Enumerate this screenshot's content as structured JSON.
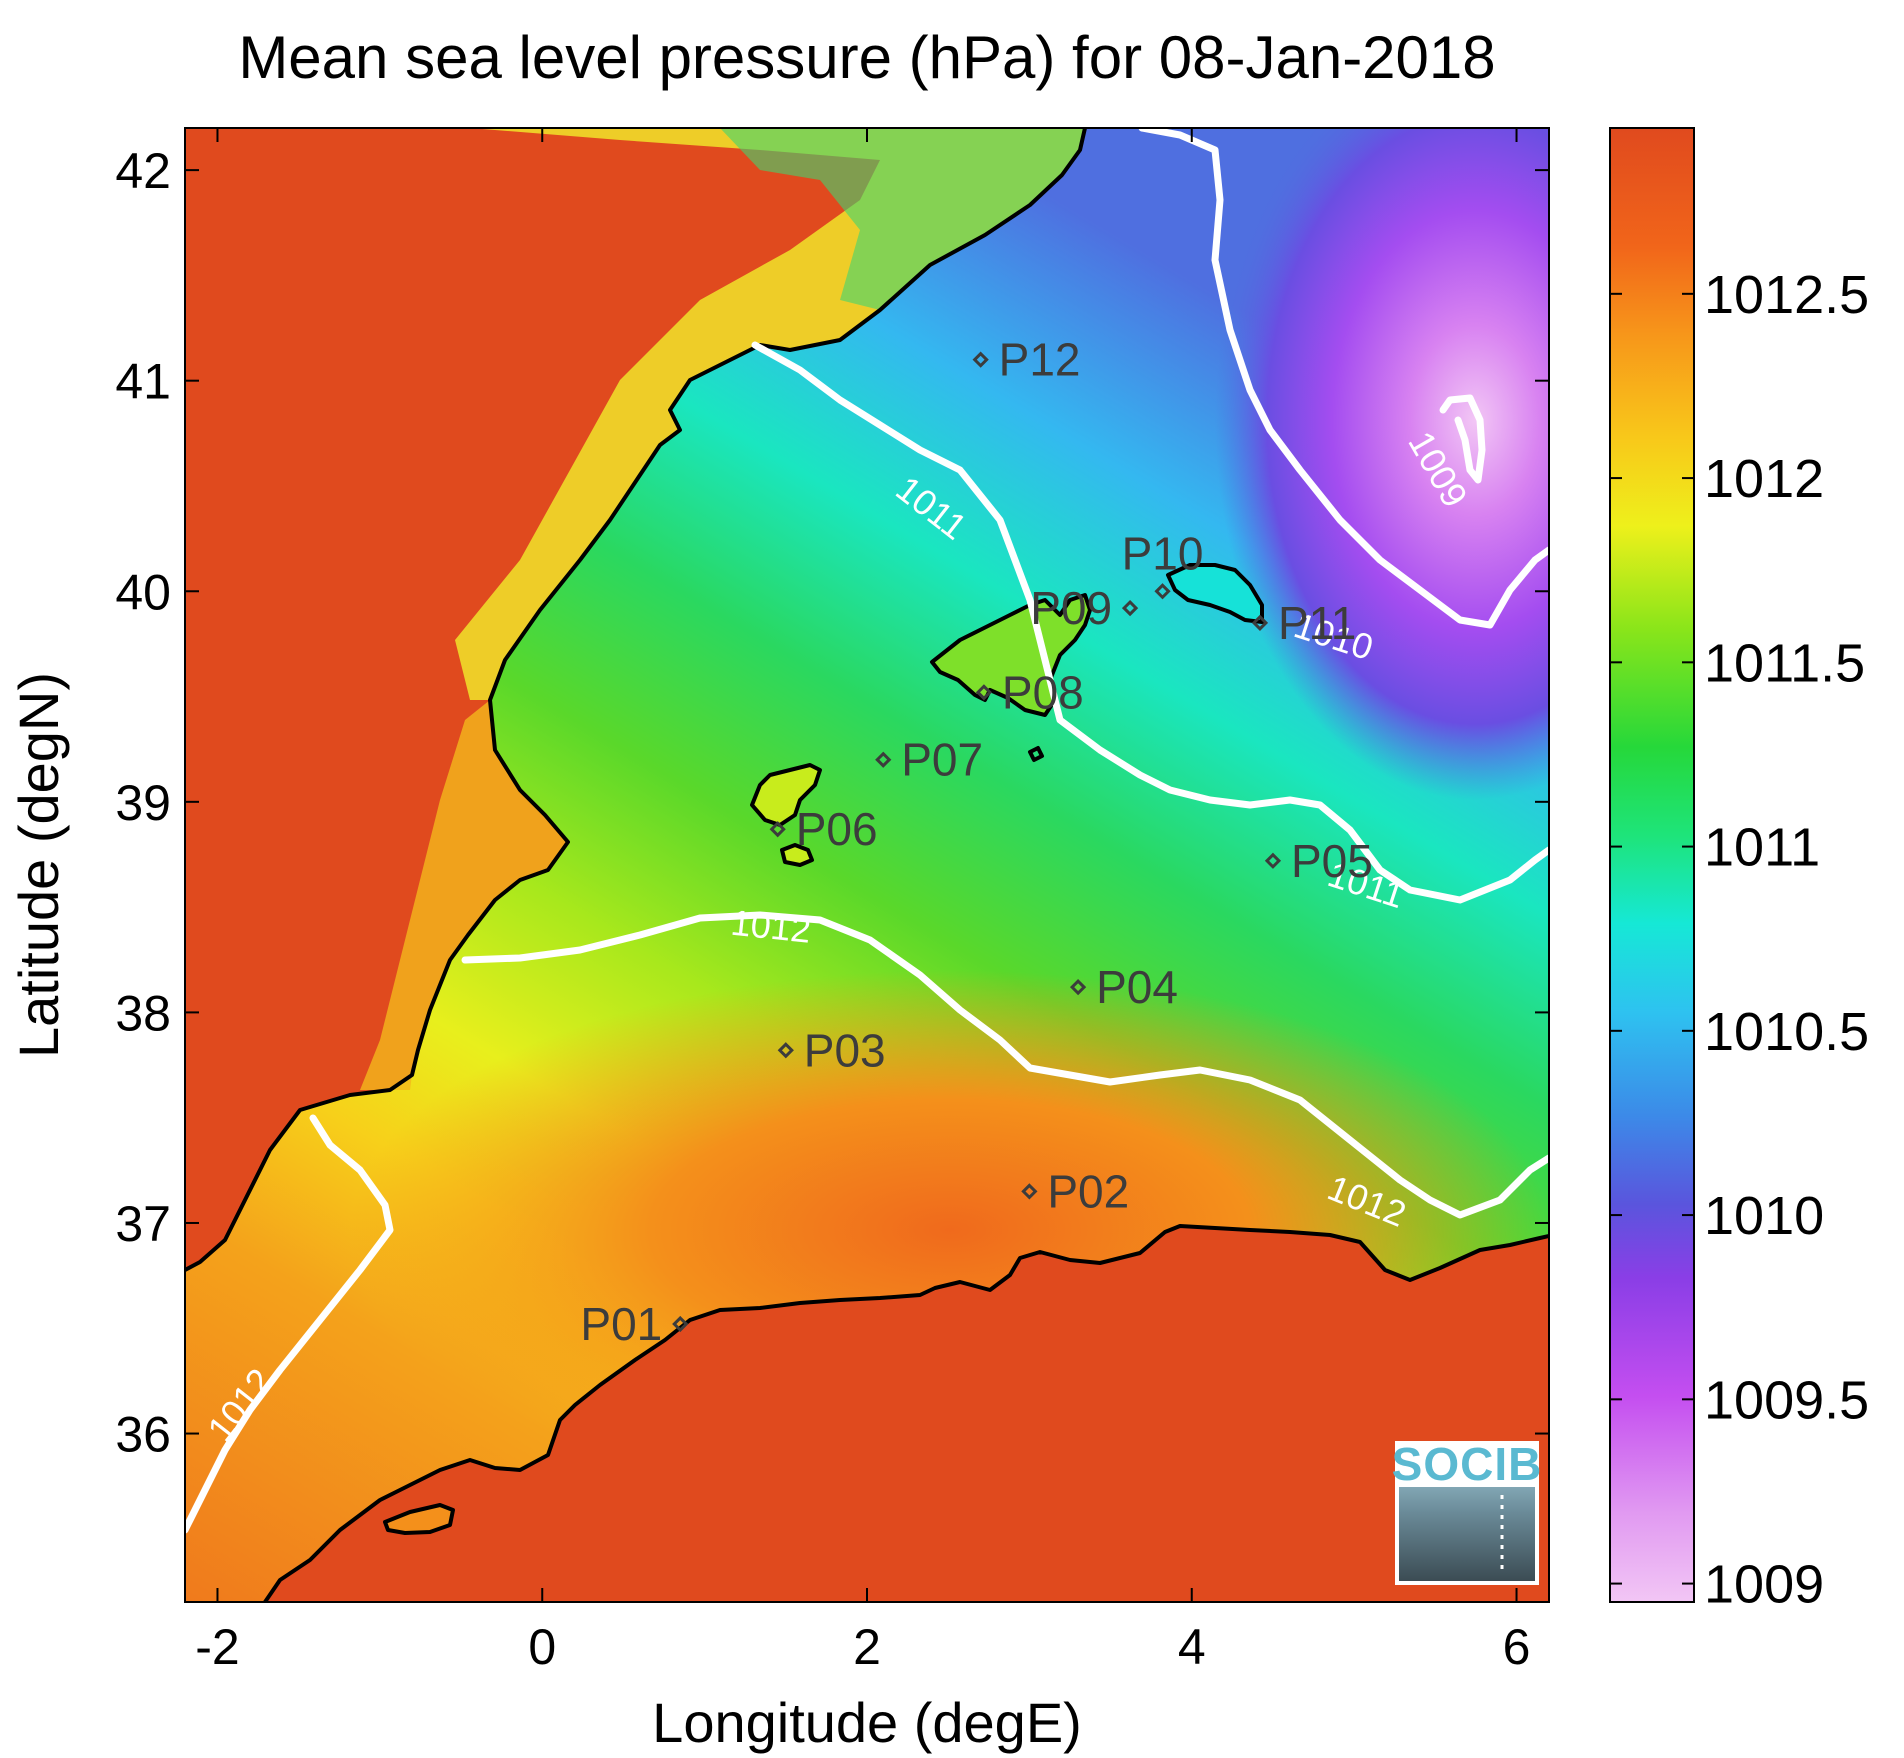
{
  "title": "Mean sea level pressure (hPa) for 08-Jan-2018",
  "xlabel": "Longitude (degE)",
  "ylabel": "Latitude (degN)",
  "xlim": [
    -2.2,
    6.2
  ],
  "ylim": [
    35.2,
    42.2
  ],
  "xticks": [
    {
      "value": -2,
      "label": "-2"
    },
    {
      "value": 0,
      "label": "0"
    },
    {
      "value": 2,
      "label": "2"
    },
    {
      "value": 4,
      "label": "4"
    },
    {
      "value": 6,
      "label": "6"
    }
  ],
  "yticks": [
    {
      "value": 36,
      "label": "36"
    },
    {
      "value": 37,
      "label": "37"
    },
    {
      "value": 38,
      "label": "38"
    },
    {
      "value": 39,
      "label": "39"
    },
    {
      "value": 40,
      "label": "40"
    },
    {
      "value": 41,
      "label": "41"
    },
    {
      "value": 42,
      "label": "42"
    }
  ],
  "colorbar": {
    "min": 1008.95,
    "max": 1012.95,
    "ticks": [
      {
        "value": 1009,
        "label": "1009"
      },
      {
        "value": 1009.5,
        "label": "1009.5"
      },
      {
        "value": 1010,
        "label": "1010"
      },
      {
        "value": 1010.5,
        "label": "1010.5"
      },
      {
        "value": 1011,
        "label": "1011"
      },
      {
        "value": 1011.5,
        "label": "1011.5"
      },
      {
        "value": 1012,
        "label": "1012"
      },
      {
        "value": 1012.5,
        "label": "1012.5"
      }
    ]
  },
  "contour_labels": [
    {
      "text": "1009",
      "lon": 5.45,
      "lat": 40.55,
      "angle": 60
    },
    {
      "text": "1010",
      "lon": 4.85,
      "lat": 39.73,
      "angle": 18
    },
    {
      "text": "1011",
      "lon": 2.35,
      "lat": 40.35,
      "angle": 38
    },
    {
      "text": "1011",
      "lon": 5.05,
      "lat": 38.55,
      "angle": 18
    },
    {
      "text": "1012",
      "lon": 1.4,
      "lat": 38.35,
      "angle": 6
    },
    {
      "text": "1012",
      "lon": 5.05,
      "lat": 37.05,
      "angle": 22
    },
    {
      "text": "1012",
      "lon": -1.8,
      "lat": 36.1,
      "angle": -52
    }
  ],
  "stations": [
    {
      "label": "P01",
      "lon": 0.85,
      "lat": 36.52,
      "side": "left"
    },
    {
      "label": "P02",
      "lon": 3.0,
      "lat": 37.15,
      "side": "right"
    },
    {
      "label": "P03",
      "lon": 1.5,
      "lat": 37.82,
      "side": "right"
    },
    {
      "label": "P04",
      "lon": 3.3,
      "lat": 38.12,
      "side": "right"
    },
    {
      "label": "P05",
      "lon": 4.5,
      "lat": 38.72,
      "side": "right"
    },
    {
      "label": "P06",
      "lon": 1.45,
      "lat": 38.87,
      "side": "right"
    },
    {
      "label": "P07",
      "lon": 2.1,
      "lat": 39.2,
      "side": "right"
    },
    {
      "label": "P08",
      "lon": 2.72,
      "lat": 39.52,
      "side": "right"
    },
    {
      "label": "P09",
      "lon": 3.62,
      "lat": 39.92,
      "side": "left"
    },
    {
      "label": "P10",
      "lon": 3.82,
      "lat": 40.0,
      "side": "above"
    },
    {
      "label": "P11",
      "lon": 4.42,
      "lat": 39.85,
      "side": "right"
    },
    {
      "label": "P12",
      "lon": 2.7,
      "lat": 41.1,
      "side": "right"
    }
  ],
  "logo": {
    "text": "SOCIB"
  },
  "colors": {
    "land": "#e04a1e",
    "coastline": "#000000",
    "contour": "#ffffff",
    "station": "#3c3c3c"
  }
}
